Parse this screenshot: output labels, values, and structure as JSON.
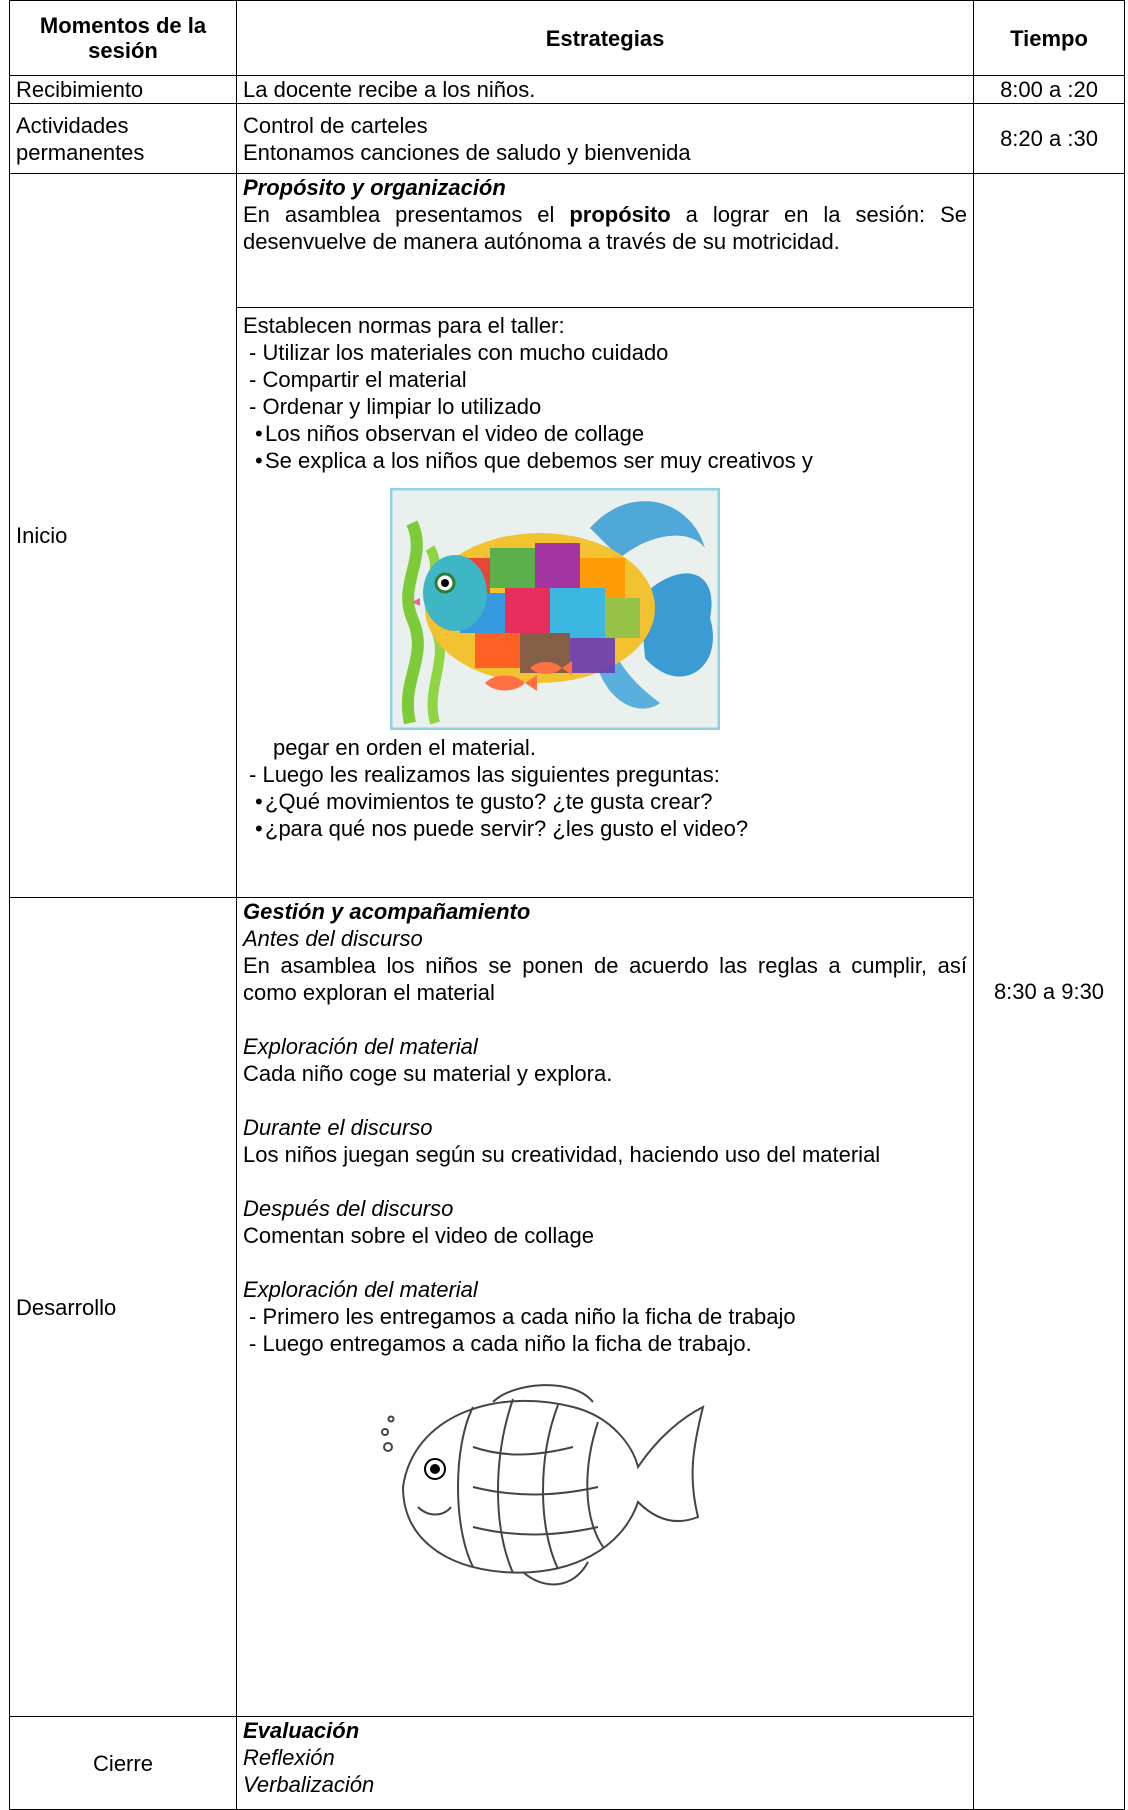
{
  "header": {
    "moments": "Momentos de la sesión",
    "strategies": "Estrategias",
    "time": "Tiempo"
  },
  "reception": {
    "moment": "Recibimiento",
    "strategy": "La docente recibe a los niños.",
    "time": "8:00 a :20"
  },
  "permanent": {
    "moment": "Actividades permanentes",
    "strategies": [
      "Control de carteles",
      "Entonamos canciones de saludo y bienvenida"
    ],
    "time": "8:20 a :30"
  },
  "main_time": "8:30 a 9:30",
  "start": {
    "moment": "Inicio",
    "purpose_heading": "Propósito y organización",
    "purpose_text": [
      "En asamblea presentamos el ",
      "propósito",
      " a lograr en la sesión: Se desenvuelve de manera autónoma a través de su motricidad."
    ],
    "norms_intro": "Establecen normas para el taller:",
    "norms": [
      "Utilizar los materiales con mucho cuidado",
      "Compartir el material",
      "Ordenar y limpiar lo utilizado"
    ],
    "video_points": [
      "Los niños observan el video de collage",
      "Se explica a los niños que debemos ser muy creativos y"
    ],
    "video_continuation": "pegar en orden el material.",
    "questions_intro": "Luego les realizamos las siguientes preguntas:",
    "questions": [
      "¿Qué movimientos te gusto? ¿te gusta crear?",
      "¿para qué nos puede servir? ¿les gusto el video?"
    ]
  },
  "development": {
    "moment": "Desarrollo",
    "heading": "Gestión y acompañamiento",
    "sections": [
      {
        "title": "Antes del discurso",
        "text": "En asamblea los niños se ponen de acuerdo las reglas a cumplir, así como exploran el material"
      },
      {
        "title": "Exploración del material",
        "text": "Cada niño coge su material y explora."
      },
      {
        "title": "Durante el discurso",
        "text": "Los niños juegan según su creatividad, haciendo uso del material"
      },
      {
        "title": "Después del discurso",
        "text": "Comentan sobre el video de collage"
      }
    ],
    "final_title": "Exploración del material",
    "final_items": [
      "Primero les entregamos a cada niño la ficha de trabajo",
      "Luego entregamos a cada niño la ficha de trabajo."
    ]
  },
  "closing": {
    "moment": "Cierre",
    "heading": "Evaluación",
    "items": [
      "Reflexión",
      "Verbalización"
    ]
  }
}
